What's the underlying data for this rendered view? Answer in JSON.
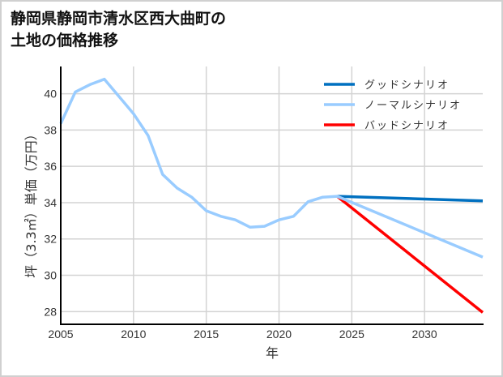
{
  "chart_data": {
    "type": "line",
    "title": "静岡県静岡市清水区西大曲町の\n土地の価格推移",
    "xlabel": "年",
    "ylabel": "坪（3.3㎡）単価（万円）",
    "xlim": [
      2005,
      2034
    ],
    "ylim": [
      27.3,
      41.5
    ],
    "x_ticks": [
      2005,
      2010,
      2015,
      2020,
      2025,
      2030
    ],
    "y_ticks": [
      28,
      30,
      32,
      34,
      36,
      38,
      40
    ],
    "grid": true,
    "legend_position": "upper right",
    "series": [
      {
        "name": "グッドシナリオ",
        "color": "#0070c0",
        "x": [
          2024,
          2034
        ],
        "values": [
          34.35,
          34.1
        ]
      },
      {
        "name": "ノーマルシナリオ",
        "color": "#99ccff",
        "x": [
          2005,
          2006,
          2007,
          2008,
          2009,
          2010,
          2011,
          2012,
          2013,
          2014,
          2015,
          2016,
          2017,
          2018,
          2019,
          2020,
          2021,
          2022,
          2023,
          2024,
          2034
        ],
        "values": [
          38.35,
          40.1,
          40.5,
          40.8,
          39.85,
          38.9,
          37.7,
          35.55,
          34.8,
          34.3,
          33.55,
          33.25,
          33.05,
          32.65,
          32.7,
          33.05,
          33.25,
          34.05,
          34.3,
          34.35,
          31.0
        ]
      },
      {
        "name": "バッドシナリオ",
        "color": "#ff0000",
        "x": [
          2024,
          2034
        ],
        "values": [
          34.35,
          27.95
        ]
      }
    ]
  }
}
